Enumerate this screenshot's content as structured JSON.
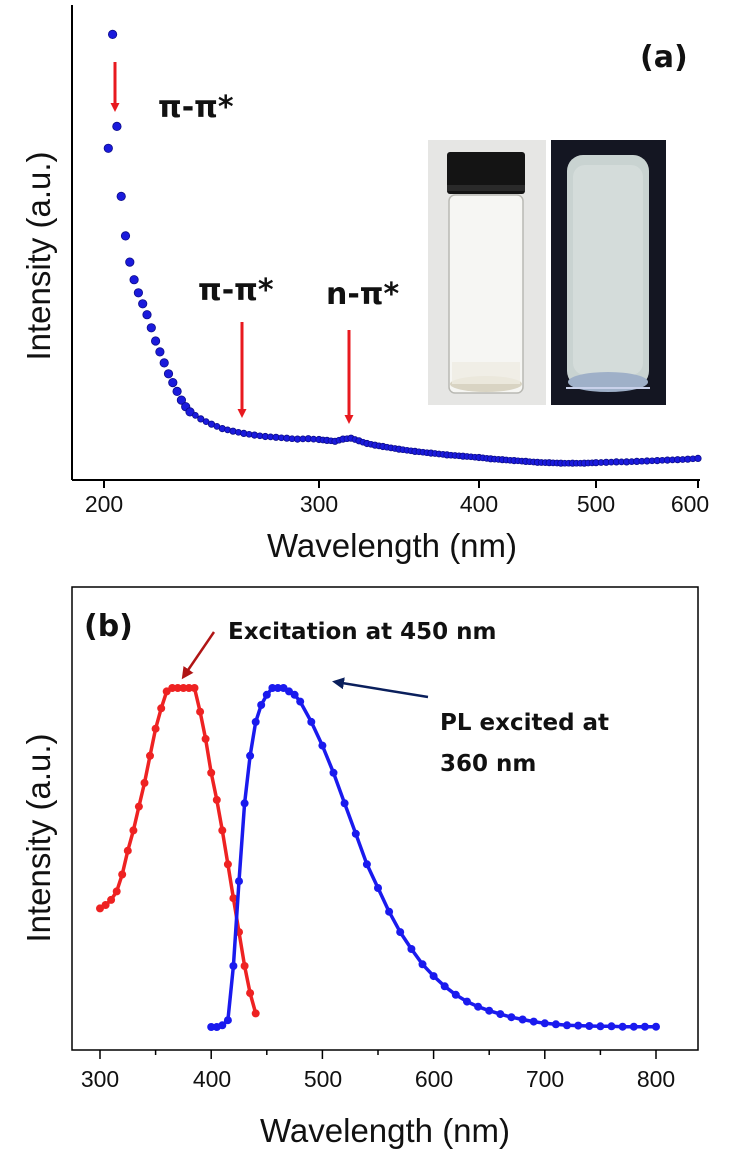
{
  "chart_data": [
    {
      "panel": "(a)",
      "type": "scatter",
      "xlabel": "Wavelength (nm)",
      "ylabel": "Intensity (a.u.)",
      "xlim": [
        190,
        600
      ],
      "ylim": [
        0,
        100
      ],
      "xticks": [
        "200",
        "300",
        "400",
        "500",
        "600"
      ],
      "y_ticks_labeled": false,
      "marker_color": "#1a1adc",
      "series": [
        {
          "x": [
            202,
            204,
            206,
            208,
            210,
            212,
            214,
            216,
            218,
            220,
            222,
            224,
            226,
            228,
            230,
            232,
            234,
            236,
            238,
            240,
            245,
            250,
            255,
            260,
            265,
            270,
            275,
            280,
            285,
            290,
            295,
            300,
            305,
            310,
            315,
            320,
            325,
            330,
            335,
            340,
            350,
            360,
            370,
            380,
            390,
            400,
            410,
            420,
            430,
            440,
            450,
            460,
            470,
            480,
            490,
            500,
            510,
            520,
            530,
            540,
            550,
            560,
            570,
            580,
            590,
            600
          ],
          "y": [
            73,
            99,
            78,
            62,
            53,
            47,
            43,
            40,
            37.5,
            35,
            32,
            29,
            26.5,
            24,
            21.5,
            19.5,
            17.5,
            15.5,
            14,
            12.8,
            11.2,
            10,
            9,
            8.4,
            7.9,
            7.5,
            7.2,
            7,
            6.8,
            6.6,
            6.7,
            6.5,
            6.3,
            6.1,
            6.6,
            6.8,
            6.2,
            5.6,
            5.2,
            4.9,
            4.3,
            3.8,
            3.4,
            3,
            2.7,
            2.4,
            2.1,
            1.9,
            1.7,
            1.5,
            1.3,
            1.2,
            1.1,
            1.1,
            1.1,
            1.2,
            1.3,
            1.4,
            1.4,
            1.5,
            1.6,
            1.7,
            1.8,
            1.9,
            2,
            2.2
          ]
        }
      ],
      "annotations": [
        {
          "text": "π-π*",
          "arrow_at_x": 206
        },
        {
          "text": "π-π*",
          "arrow_at_x": 262
        },
        {
          "text": "n-π*",
          "arrow_at_x": 318
        }
      ],
      "panel_label": "(a)"
    },
    {
      "panel": "(b)",
      "type": "line",
      "xlabel": "Wavelength (nm)",
      "ylabel": "Intensity (a.u.)",
      "xlim": [
        285,
        815
      ],
      "ylim": [
        0,
        100
      ],
      "xticks": [
        "300",
        "400",
        "500",
        "600",
        "700",
        "800"
      ],
      "y_ticks_labeled": false,
      "series": [
        {
          "name": "Excitation at 450 nm",
          "color": "#ee2222",
          "x": [
            300,
            305,
            310,
            315,
            320,
            325,
            330,
            335,
            340,
            345,
            350,
            355,
            360,
            365,
            370,
            375,
            380,
            385,
            390,
            395,
            400,
            405,
            410,
            415,
            420,
            425,
            430,
            435,
            440
          ],
          "y": [
            35,
            36,
            37.5,
            40,
            45,
            52,
            58,
            65,
            72,
            80,
            88,
            94,
            99,
            100,
            100,
            100,
            100,
            100,
            93,
            85,
            75,
            67,
            58,
            48,
            38,
            28,
            18,
            10,
            4
          ]
        },
        {
          "name": "PL excited at 360 nm",
          "color": "#1a1aee",
          "x": [
            400,
            405,
            410,
            415,
            420,
            425,
            430,
            435,
            440,
            445,
            450,
            455,
            460,
            465,
            470,
            475,
            480,
            490,
            500,
            510,
            520,
            530,
            540,
            550,
            560,
            570,
            580,
            590,
            600,
            610,
            620,
            630,
            640,
            650,
            660,
            670,
            680,
            690,
            700,
            710,
            720,
            730,
            740,
            750,
            760,
            770,
            780,
            790,
            800
          ],
          "y": [
            0,
            0,
            0.5,
            2,
            18,
            43,
            66,
            80,
            90,
            95,
            98,
            100,
            100,
            100,
            99,
            98,
            96,
            90,
            83,
            75,
            66,
            57,
            48,
            41,
            34,
            28,
            23,
            18.5,
            15,
            12,
            9.5,
            7.5,
            6,
            4.8,
            3.8,
            2.9,
            2.2,
            1.6,
            1.1,
            0.8,
            0.5,
            0.4,
            0.3,
            0.2,
            0.2,
            0.1,
            0.1,
            0.1,
            0.1
          ]
        }
      ],
      "panel_label": "(b)",
      "annotations": [
        {
          "text": "Excitation at 450 nm"
        },
        {
          "text": "PL excited at"
        },
        {
          "text": "360 nm"
        }
      ]
    }
  ]
}
